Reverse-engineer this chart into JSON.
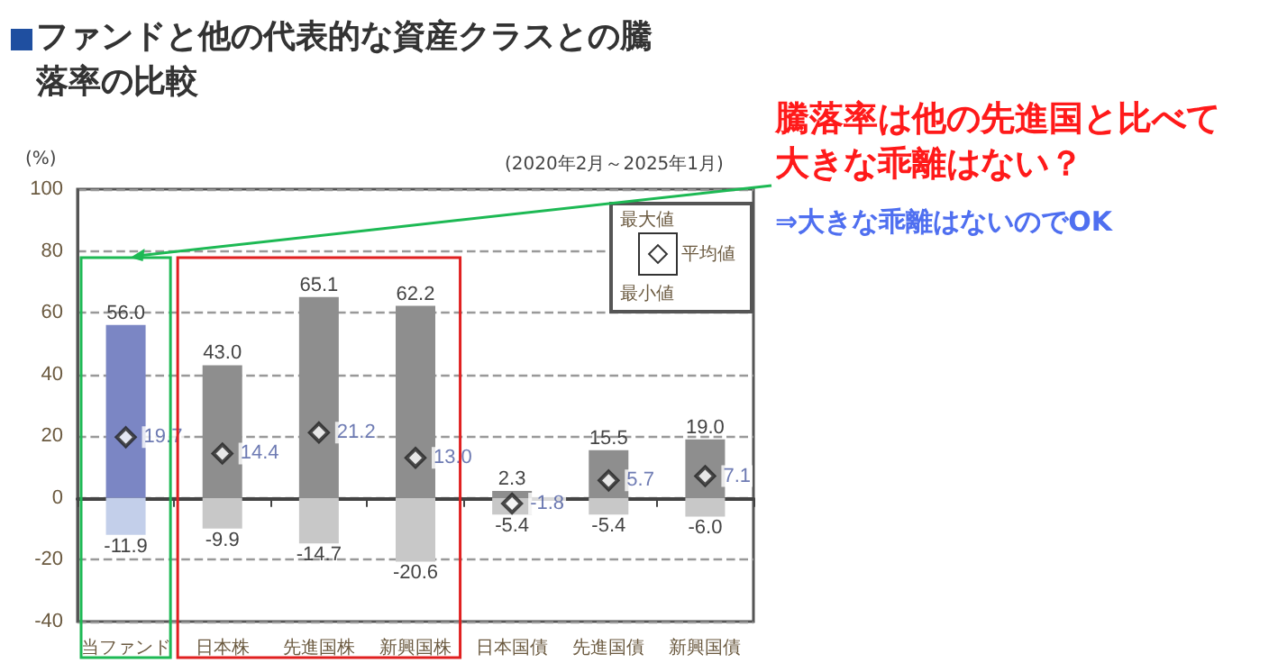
{
  "chart_data": {
    "type": "bar",
    "title": "ファンドと他の代表的な資産クラスとの騰落率の比較",
    "ylabel": "(%)",
    "annotations": [
      "(2020年2月～2025年1月)",
      "騰落率は他の先進国と比べて大きな乖離はない？",
      "⇒大きな乖離はないのでOK",
      "最大値",
      "平均値",
      "最小値"
    ],
    "categories": [
      "当ファンド",
      "日本株",
      "先進国株",
      "新興国株",
      "日本国債",
      "先進国債",
      "新興国債"
    ],
    "stacked": true,
    "series": [
      {
        "colors": [
          "#7b86c4",
          "#8e8e8e",
          "#8e8e8e",
          "#8e8e8e",
          "#8e8e8e",
          "#8e8e8e",
          "#8e8e8e"
        ],
        "values": [
          56.0,
          43.0,
          65.1,
          62.2,
          2.3,
          15.5,
          19.0
        ],
        "value_labels": [
          "56.0",
          "43.0",
          "65.1",
          "62.2",
          "2.3",
          "15.5",
          "19.0"
        ]
      },
      {
        "colors": [
          "#c3cfea",
          "#c8c8c8",
          "#c8c8c8",
          "#c8c8c8",
          "#c8c8c8",
          "#c8c8c8",
          "#c8c8c8"
        ],
        "values": [
          -11.9,
          -9.9,
          -14.7,
          -20.6,
          -5.4,
          -5.4,
          -6.0
        ],
        "value_labels": [
          "-11.9",
          "-9.9",
          "-14.7",
          "-20.6",
          "-5.4",
          "-5.4",
          "-6.0"
        ]
      },
      {
        "type": "scatter",
        "color": "#ffffff",
        "marker": "diamond",
        "values": [
          19.7,
          14.4,
          21.2,
          13.0,
          -1.8,
          5.7,
          7.1
        ],
        "value_labels": [
          "19.7",
          "14.4",
          "21.2",
          "13.0",
          "-1.8",
          "5.7",
          "7.1"
        ]
      }
    ],
    "ylim": [
      -40,
      100
    ],
    "yticks": [
      -40,
      -20,
      0,
      20,
      40,
      60,
      80,
      100
    ],
    "grid": "y"
  }
}
